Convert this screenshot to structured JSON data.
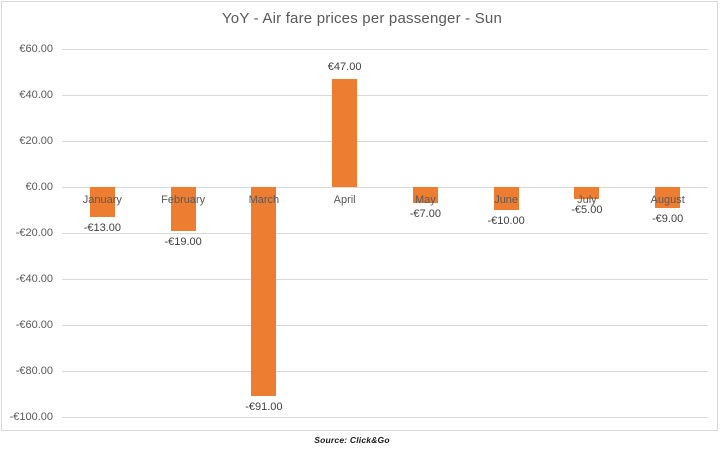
{
  "title": "YoY - Air fare prices per passenger - Sun",
  "source_note": "Source: Click&Go",
  "colors": {
    "bar": "#ED7D31",
    "gridline": "#D9D9D9",
    "chart_border": "#D9D9D9",
    "axis_text": "#595959",
    "data_label_text": "#404040",
    "title_text": "#595959",
    "source_text": "#1A1A1A",
    "background": "#FFFFFF"
  },
  "chart_data": {
    "type": "bar",
    "title": "YoY - Air fare prices per passenger - Sun",
    "xlabel": "",
    "ylabel": "",
    "categories": [
      "January",
      "February",
      "March",
      "April",
      "May",
      "June",
      "July",
      "August"
    ],
    "values": [
      -13,
      -19,
      -91,
      47,
      -7,
      -10,
      -5,
      -9
    ],
    "data_labels": [
      "-€13.00",
      "-€19.00",
      "-€91.00",
      "€47.00",
      "-€7.00",
      "-€10.00",
      "-€5.00",
      "-€9.00"
    ],
    "currency": "EUR",
    "y_ticks": [
      {
        "value": 60,
        "label": "€60.00"
      },
      {
        "value": 40,
        "label": "€40.00"
      },
      {
        "value": 20,
        "label": "€20.00"
      },
      {
        "value": 0,
        "label": "€0.00"
      },
      {
        "value": -20,
        "label": "-€20.00"
      },
      {
        "value": -40,
        "label": "-€40.00"
      },
      {
        "value": -60,
        "label": "-€60.00"
      },
      {
        "value": -80,
        "label": "-€80.00"
      },
      {
        "value": -100,
        "label": "-€100.00"
      }
    ],
    "ylim": [
      -100,
      60
    ],
    "grid": true,
    "legend": false,
    "source": "Source: Click&Go"
  }
}
